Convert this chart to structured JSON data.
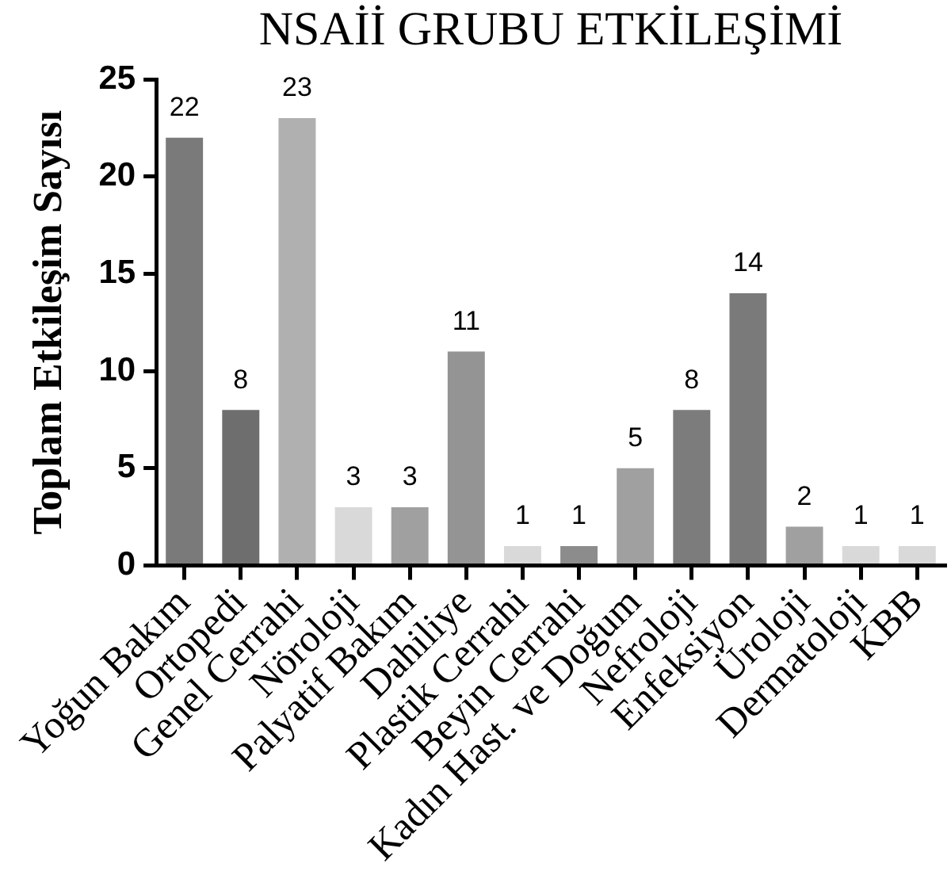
{
  "chart_data": {
    "type": "bar",
    "title": "NSAİİ GRUBU ETKİLEŞİMİ",
    "ylabel": "Toplam Etkileşim Sayısı",
    "categories": [
      "Yoğun Bakım",
      "Ortopedi",
      "Genel Cerrahi",
      "Nöroloji",
      "Palyatif Bakım",
      "Dahiliye",
      "Plastik Cerrahi",
      "Beyin Cerrahi",
      "Kadın Hast. ve Doğum",
      "Nefroloji",
      "Enfeksiyon",
      "Üroloji",
      "Dermatoloji",
      "KBB"
    ],
    "values": [
      22,
      8,
      23,
      3,
      3,
      11,
      1,
      1,
      5,
      8,
      14,
      2,
      1,
      1
    ],
    "colors": [
      "#7a7a7a",
      "#6e6e6e",
      "#b0b0b0",
      "#d9d9d9",
      "#a0a0a0",
      "#949494",
      "#d9d9d9",
      "#8c8c8c",
      "#a0a0a0",
      "#7c7c7c",
      "#7a7a7a",
      "#a0a0a0",
      "#d9d9d9",
      "#d9d9d9"
    ],
    "ylim": [
      0,
      25
    ],
    "yticks": [
      0,
      5,
      10,
      15,
      20,
      25
    ],
    "data_labels": true
  }
}
